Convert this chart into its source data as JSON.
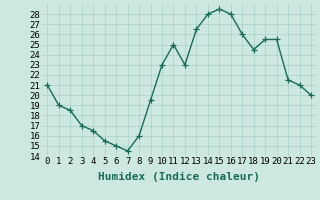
{
  "x": [
    0,
    1,
    2,
    3,
    4,
    5,
    6,
    7,
    8,
    9,
    10,
    11,
    12,
    13,
    14,
    15,
    16,
    17,
    18,
    19,
    20,
    21,
    22,
    23
  ],
  "y": [
    21,
    19,
    18.5,
    17,
    16.5,
    15.5,
    15,
    14.5,
    16,
    19.5,
    23,
    25,
    23,
    26.5,
    28,
    28.5,
    28,
    26,
    24.5,
    25.5,
    25.5,
    21.5,
    21,
    20
  ],
  "line_color": "#1a6b5a",
  "marker": "+",
  "marker_size": 4,
  "bg_color": "#cce8e0",
  "grid_color": "#b0d4cc",
  "xlabel": "Humidex (Indice chaleur)",
  "ylim": [
    14,
    29
  ],
  "xlim": [
    -0.5,
    23.5
  ],
  "yticks": [
    14,
    15,
    16,
    17,
    18,
    19,
    20,
    21,
    22,
    23,
    24,
    25,
    26,
    27,
    28
  ],
  "xticks": [
    0,
    1,
    2,
    3,
    4,
    5,
    6,
    7,
    8,
    9,
    10,
    11,
    12,
    13,
    14,
    15,
    16,
    17,
    18,
    19,
    20,
    21,
    22,
    23
  ],
  "tick_label_fontsize": 6.5,
  "xlabel_fontsize": 8,
  "line_width": 1.0,
  "marker_edge_width": 0.9
}
